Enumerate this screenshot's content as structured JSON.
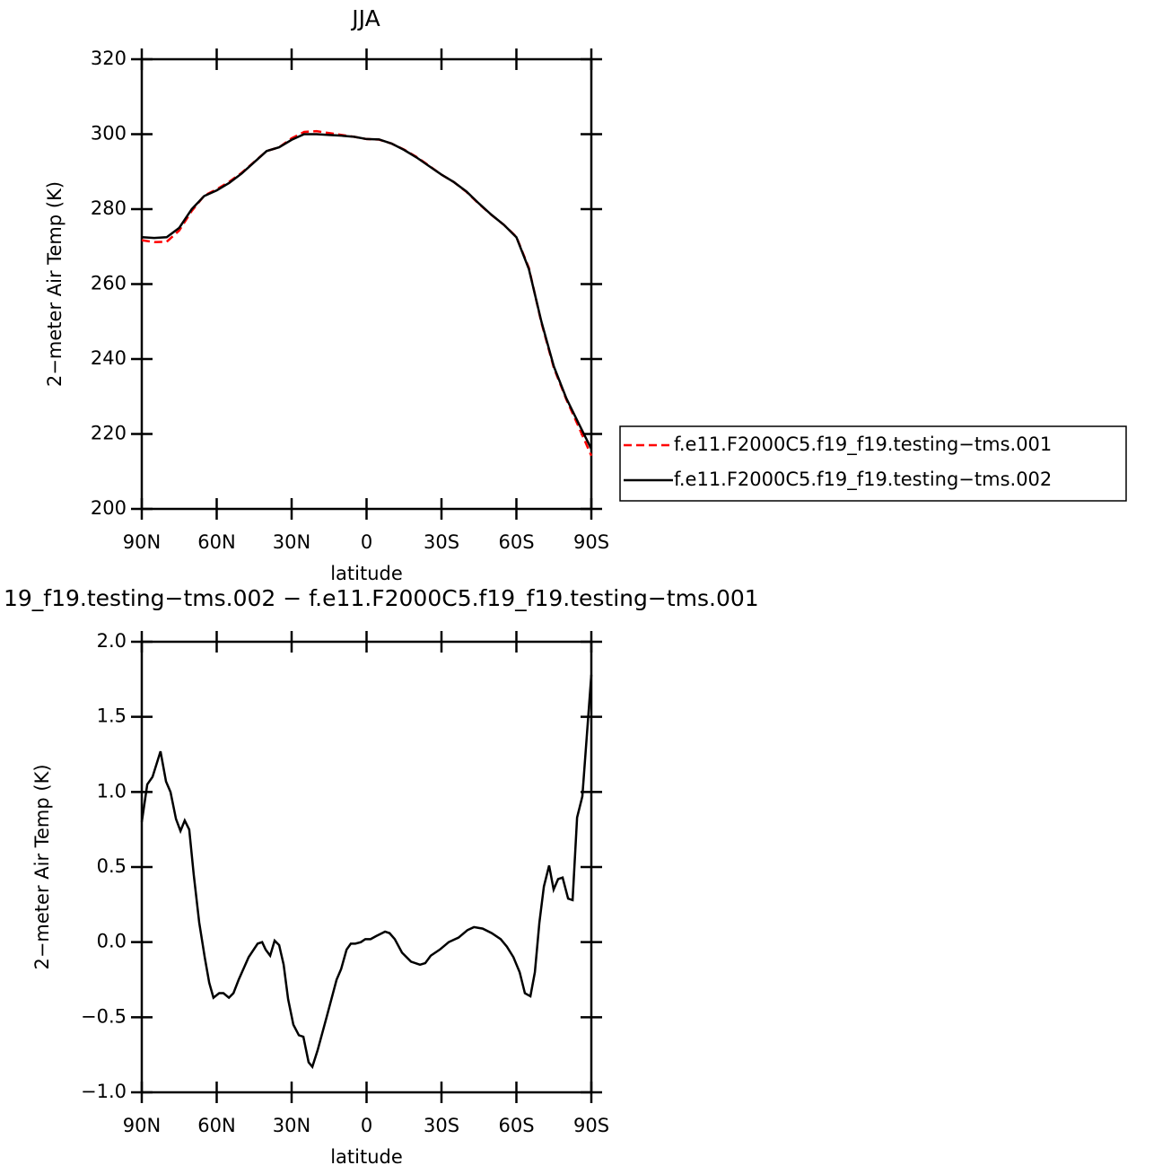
{
  "chart_data": [
    {
      "type": "line",
      "title": "JJA",
      "xlabel": "latitude",
      "ylabel": "2−meter Air Temp (K)",
      "x": [
        90,
        85,
        80,
        75,
        70,
        65,
        60,
        55,
        50,
        45,
        40,
        35,
        30,
        25,
        20,
        15,
        10,
        5,
        0,
        -5,
        -10,
        -15,
        -20,
        -25,
        -30,
        -35,
        -40,
        -45,
        -50,
        -55,
        -60,
        -65,
        -70,
        -75,
        -80,
        -85,
        -90
      ],
      "series": [
        {
          "name": "f.e11.F2000C5.f19_f19.testing−tms.001",
          "color": "#ff0000",
          "dash": "dashed",
          "values": [
            271.7,
            271.2,
            271.3,
            274.3,
            279.5,
            283.6,
            285.3,
            287.3,
            289.7,
            292.6,
            295.5,
            296.5,
            298.9,
            300.6,
            300.8,
            300.3,
            299.8,
            299.3,
            298.7,
            298.55,
            297.5,
            295.9,
            293.95,
            291.6,
            289.2,
            287.2,
            284.6,
            281.4,
            278.45,
            275.8,
            272.6,
            264.3,
            249.7,
            237.6,
            229.2,
            221.8,
            214.2
          ]
        },
        {
          "name": "f.e11.F2000C5.f19_f19.testing−tms.002",
          "color": "#000000",
          "dash": "solid",
          "values": [
            272.5,
            272.3,
            272.5,
            275,
            280,
            283.5,
            285,
            287,
            289.5,
            292.5,
            295.5,
            296.5,
            298.5,
            300,
            300,
            299.8,
            299.6,
            299.3,
            298.7,
            298.6,
            297.5,
            295.8,
            293.8,
            291.5,
            289.2,
            287.2,
            284.7,
            281.5,
            278.5,
            275.8,
            272.5,
            264,
            250,
            238,
            229.5,
            222.7,
            216
          ]
        }
      ],
      "xlim": [
        90,
        -90
      ],
      "xticks": [
        {
          "value": 90,
          "label": "90N"
        },
        {
          "value": 60,
          "label": "60N"
        },
        {
          "value": 30,
          "label": "30N"
        },
        0,
        {
          "value": -30,
          "label": "30S"
        },
        {
          "value": -60,
          "label": "60S"
        },
        {
          "value": -90,
          "label": "90S"
        }
      ],
      "ylim": [
        200,
        320
      ],
      "yticks": [
        200,
        220,
        240,
        260,
        280,
        300,
        320
      ],
      "legend": "right"
    },
    {
      "type": "line",
      "title": "19_f19.testing−tms.002 − f.e11.F2000C5.f19_f19.testing−tms.001",
      "xlabel": "latitude",
      "ylabel": "2−meter Air Temp (K)",
      "x": [
        90,
        87.8,
        85.7,
        82.5,
        80.3,
        78.5,
        76.3,
        74.5,
        72.8,
        71,
        69.2,
        67,
        64.8,
        63,
        61.3,
        59,
        57.3,
        55.1,
        53.3,
        51.2,
        47.2,
        43.6,
        41.8,
        40.4,
        38.6,
        36.8,
        35,
        33.2,
        31.4,
        29.3,
        27.1,
        25.3,
        23.2,
        21.7,
        19.6,
        16,
        12,
        10.2,
        8,
        6.3,
        4.5,
        2.3,
        0.5,
        -1.6,
        -3.8,
        -7.4,
        -9.2,
        -11.3,
        -14.2,
        -17.8,
        -21.4,
        -23.5,
        -25.7,
        -29.3,
        -32.9,
        -36.8,
        -40.4,
        -43,
        -46.5,
        -50.1,
        -53.7,
        -56.2,
        -58.8,
        -61.3,
        -63.4,
        -65.6,
        -67.4,
        -69.2,
        -71,
        -73.1,
        -74.9,
        -76.7,
        -78.5,
        -80.7,
        -82.5,
        -84.3,
        -86.4,
        -90
      ],
      "series": [
        {
          "color": "#000000",
          "dash": "solid",
          "values": [
            0.8,
            1.05,
            1.1,
            1.27,
            1.07,
            1.0,
            0.82,
            0.74,
            0.81,
            0.75,
            0.45,
            0.13,
            -0.1,
            -0.27,
            -0.37,
            -0.34,
            -0.34,
            -0.37,
            -0.34,
            -0.25,
            -0.1,
            -0.01,
            0.0,
            -0.05,
            -0.09,
            0.01,
            -0.02,
            -0.15,
            -0.38,
            -0.55,
            -0.62,
            -0.63,
            -0.8,
            -0.83,
            -0.72,
            -0.5,
            -0.25,
            -0.18,
            -0.05,
            -0.01,
            -0.01,
            0.0,
            0.02,
            0.02,
            0.04,
            0.07,
            0.06,
            0.02,
            -0.07,
            -0.13,
            -0.15,
            -0.14,
            -0.09,
            -0.05,
            0.0,
            0.03,
            0.08,
            0.1,
            0.09,
            0.06,
            0.02,
            -0.03,
            -0.1,
            -0.2,
            -0.34,
            -0.36,
            -0.2,
            0.13,
            0.37,
            0.51,
            0.35,
            0.42,
            0.43,
            0.29,
            0.28,
            0.83,
            0.97,
            1.78
          ]
        }
      ],
      "xlim": [
        90,
        -90
      ],
      "xticks": [
        {
          "value": 90,
          "label": "90N"
        },
        {
          "value": 60,
          "label": "60N"
        },
        {
          "value": 30,
          "label": "30N"
        },
        0,
        {
          "value": -30,
          "label": "30S"
        },
        {
          "value": -60,
          "label": "60S"
        },
        {
          "value": -90,
          "label": "90S"
        }
      ],
      "ylim": [
        -1,
        2
      ],
      "yticks": [
        {
          "value": -1,
          "label": "−1.0"
        },
        {
          "value": -0.5,
          "label": "−0.5"
        },
        {
          "value": 0,
          "label": "0.0"
        },
        {
          "value": 0.5,
          "label": "0.5"
        },
        {
          "value": 1,
          "label": "1.0"
        },
        {
          "value": 1.5,
          "label": "1.5"
        },
        {
          "value": 2,
          "label": "2.0"
        }
      ]
    }
  ]
}
